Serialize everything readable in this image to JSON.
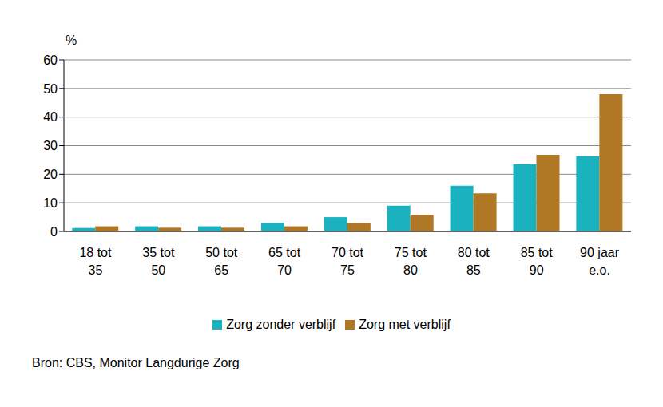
{
  "chart_data": {
    "type": "bar",
    "ylabel": "%",
    "source": "Bron: CBS, Monitor Langdurige Zorg",
    "categories": [
      "18 tot 35",
      "35 tot 50",
      "50 tot 65",
      "65 tot 70",
      "70 tot 75",
      "75 tot 80",
      "80 tot 85",
      "85 tot 90",
      "90 jaar e.o."
    ],
    "series": [
      {
        "name": "Zorg zonder verblijf",
        "color": "#1ab2be",
        "values": [
          1.2,
          1.8,
          1.8,
          3.0,
          5.0,
          9.0,
          16.0,
          23.5,
          26.3
        ]
      },
      {
        "name": "Zorg met verblijf",
        "color": "#b07724",
        "values": [
          1.8,
          1.3,
          1.3,
          1.8,
          3.0,
          5.8,
          13.3,
          26.8,
          48.0
        ]
      }
    ],
    "ylim": [
      0,
      60
    ],
    "yticks": [
      0,
      10,
      20,
      30,
      40,
      50,
      60
    ],
    "grid": true,
    "legend": "bottom"
  }
}
